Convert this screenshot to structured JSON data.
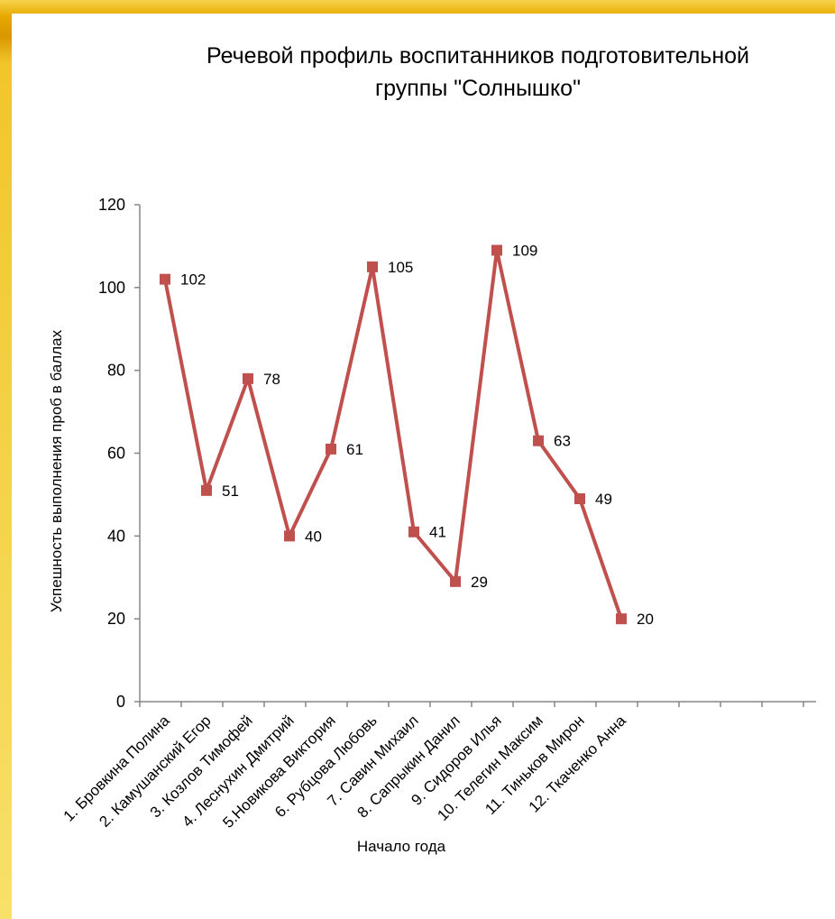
{
  "chart_data": {
    "type": "line",
    "title": "Речевой профиль воспитанников  подготовительной группы \"Солнышко\"",
    "title_lines": [
      "Речевой профиль воспитанников  подготовительной",
      "группы \"Солнышко\""
    ],
    "xlabel": "Начало года",
    "ylabel": "Успешность выполнения проб в  баллах",
    "ylim": [
      0,
      120
    ],
    "yticks": [
      0,
      20,
      40,
      60,
      80,
      100,
      120
    ],
    "grid": false,
    "legend": "none",
    "categories": [
      "1. Бровкина Полина",
      "2. Камушанский Егор",
      "3. Козлов Тимофей",
      "4. Леснухин Дмитрий",
      "5.Новикова Виктория",
      "6. Рубцова Любовь",
      "7. Савин Михаил",
      "8. Сапрыкин Данил",
      "9. Сидоров Илья",
      "10. Телегин Максим",
      "11. Тиньков Мирон",
      "12. Ткаченко Анна"
    ],
    "series": [
      {
        "values": [
          102,
          51,
          78,
          40,
          61,
          105,
          41,
          29,
          109,
          63,
          49,
          20
        ],
        "color": "#c0504d",
        "marker": "square"
      }
    ]
  }
}
